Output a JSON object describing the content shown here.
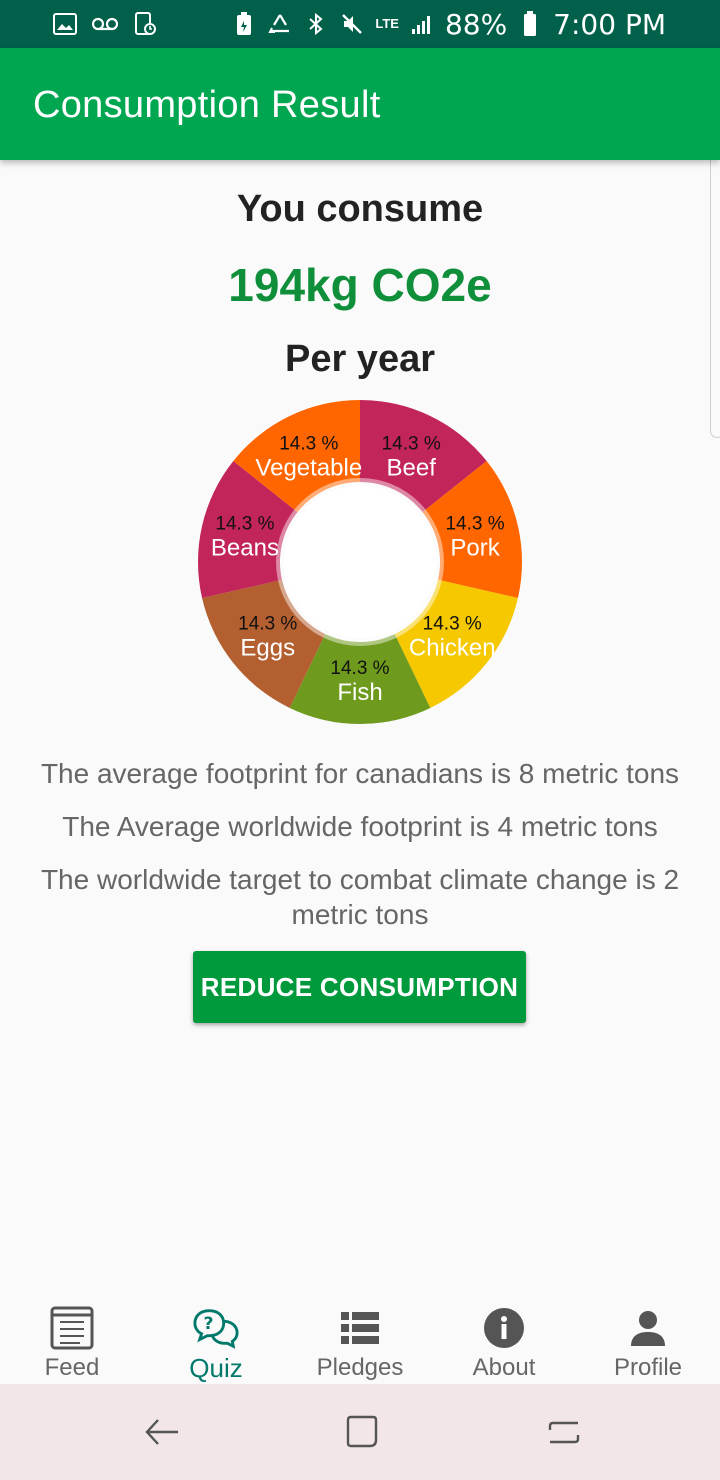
{
  "status_bar": {
    "battery": "88%",
    "time": "7:00 PM",
    "network": "LTE",
    "left_icons": [
      "image-icon",
      "voicemail-icon",
      "screen-time-icon"
    ],
    "right_icons": [
      "battery-saver-icon",
      "recycle-icon",
      "bluetooth-icon",
      "mute-icon",
      "signal-icon",
      "battery-icon"
    ]
  },
  "app_bar": {
    "title": "Consumption Result"
  },
  "summary": {
    "heading": "You consume",
    "amount": "194kg CO2e",
    "period": "Per year"
  },
  "chart_data": {
    "type": "pie",
    "donut": true,
    "categories": [
      "Beef",
      "Pork",
      "Chicken",
      "Fish",
      "Eggs",
      "Beans",
      "Vegetable"
    ],
    "values": [
      14.3,
      14.3,
      14.3,
      14.3,
      14.3,
      14.3,
      14.3
    ],
    "value_labels": [
      "14.3 %",
      "14.3 %",
      "14.3 %",
      "14.3 %",
      "14.3 %",
      "14.3 %",
      "14.3 %"
    ],
    "colors": [
      "#c2255a",
      "#ff6600",
      "#f5c800",
      "#6e9a1e",
      "#b45f30",
      "#c2255a",
      "#ff6600"
    ]
  },
  "info": {
    "line1": "The average footprint for canadians is 8 metric tons",
    "line2": "The Average worldwide footprint is 4 metric tons",
    "line3": "The worldwide target to combat climate change is 2 metric tons"
  },
  "action": {
    "label": "REDUCE CONSUMPTION"
  },
  "bottom_nav": {
    "active": "Quiz",
    "items": [
      {
        "label": "Feed",
        "icon": "feed-icon"
      },
      {
        "label": "Quiz",
        "icon": "quiz-icon"
      },
      {
        "label": "Pledges",
        "icon": "pledges-icon"
      },
      {
        "label": "About",
        "icon": "info-icon"
      },
      {
        "label": "Profile",
        "icon": "profile-icon"
      }
    ]
  },
  "system_nav": {
    "icons": [
      "back-icon",
      "home-icon",
      "recents-icon"
    ]
  },
  "accent_colors": {
    "app_bar": "#00a650",
    "status_bar": "#00604a",
    "amount": "#0f8f3a",
    "button": "#009a3c",
    "active_tab": "#00796b"
  }
}
